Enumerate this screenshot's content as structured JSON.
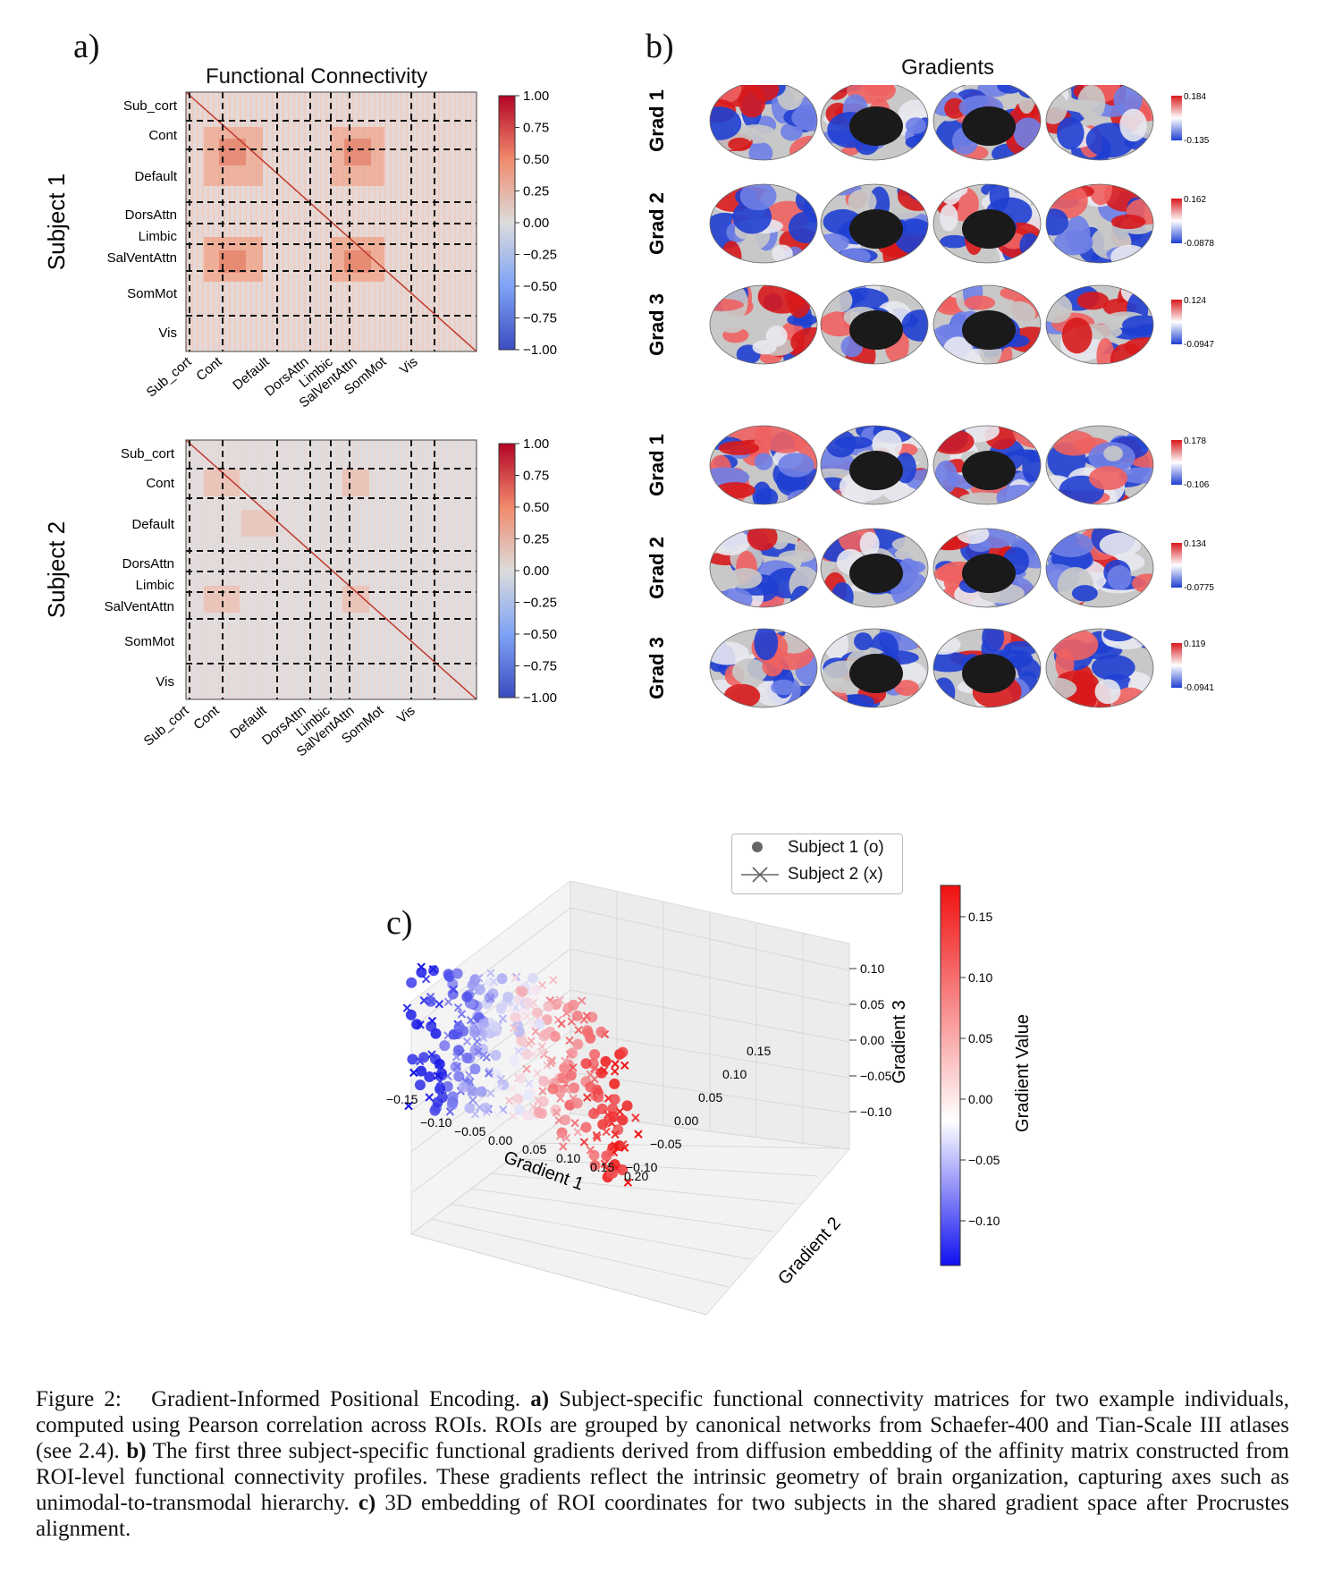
{
  "panel_a": {
    "letter": "a)",
    "title": "Functional Connectivity",
    "networks": [
      "Sub_cort",
      "Cont",
      "Default",
      "DorsAttn",
      "Limbic",
      "SalVentAttn",
      "SomMot",
      "Vis"
    ],
    "subjects": [
      "Subject 1",
      "Subject 2"
    ],
    "colorbar_ticks": [
      "1.00",
      "0.75",
      "0.50",
      "0.25",
      "0.00",
      "−0.25",
      "−0.50",
      "−0.75",
      "−1.00"
    ]
  },
  "panel_b": {
    "letter": "b)",
    "title": "Gradients",
    "rows": [
      {
        "label": "Grad 1",
        "max": "0.184",
        "min": "-0.135"
      },
      {
        "label": "Grad 2",
        "max": "0.162",
        "min": "-0.0878"
      },
      {
        "label": "Grad 3",
        "max": "0.124",
        "min": "-0.0947"
      },
      {
        "label": "Grad 1",
        "max": "0.178",
        "min": "-0.106"
      },
      {
        "label": "Grad 2",
        "max": "0.134",
        "min": "-0.0775"
      },
      {
        "label": "Grad 3",
        "max": "0.119",
        "min": "-0.0941"
      }
    ]
  },
  "panel_c": {
    "letter": "c)",
    "legend": [
      "Subject 1 (o)",
      "Subject 2 (x)"
    ],
    "colorbar_label": "Gradient Value",
    "colorbar_ticks": [
      "0.15",
      "0.10",
      "0.05",
      "0.00",
      "−0.05",
      "−0.10"
    ],
    "axis_labels": {
      "x": "Gradient 1",
      "y": "Gradient 2",
      "z": "Gradient 3"
    },
    "x_ticks": [
      "−0.15",
      "−0.10",
      "−0.05",
      "0.00",
      "0.05",
      "0.10",
      "0.15",
      "0.20"
    ],
    "y_ticks": [
      "−0.10",
      "−0.05",
      "0.00",
      "0.05",
      "0.10",
      "0.15"
    ],
    "z_ticks": [
      "0.10",
      "0.05",
      "0.00",
      "−0.05",
      "−0.10"
    ]
  },
  "caption": {
    "label": "Figure 2:",
    "title": "Gradient-Informed Positional Encoding.",
    "a_tag": "a)",
    "a_text": "Subject-specific functional connectivity matrices for two example individuals, computed using Pearson correlation across ROIs. ROIs are grouped by canonical networks from Schaefer-400 and Tian-Scale III atlases (see 2.4).",
    "b_tag": "b)",
    "b_text": "The first three subject-specific functional gradients derived from diffusion embedding of the affinity matrix constructed from ROI-level functional connectivity profiles. These gradients reflect the intrinsic geometry of brain organization, capturing axes such as unimodal-to-transmodal hierarchy.",
    "c_tag": "c)",
    "c_text": "3D embedding of ROI coordinates for two subjects in the shared gradient space after Procrustes alignment."
  },
  "colors": {
    "red": "#d7191c",
    "blue": "#1f3fd1",
    "neutral": "#e6e1e1",
    "brain_gray": "#c8c8c8"
  }
}
